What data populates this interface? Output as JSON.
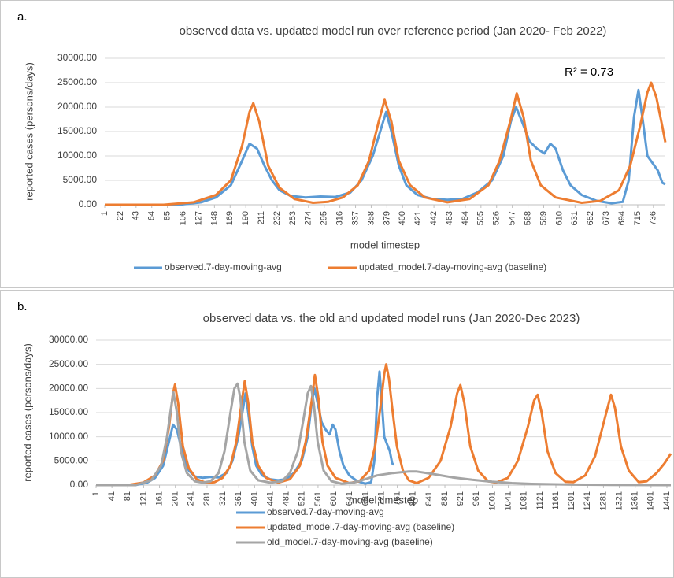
{
  "chart_data": [
    {
      "type": "line",
      "label": "a.",
      "title": "observed data vs. updated model run over reference period (Jan 2020- Feb 2022)",
      "x_label": "model timestep",
      "y_label": "reported cases (persons/days)",
      "annotation": "R² = 0.73",
      "xlim": [
        1,
        752
      ],
      "ylim": [
        0,
        30000
      ],
      "xticks": [
        1,
        22,
        43,
        64,
        85,
        106,
        127,
        148,
        169,
        190,
        211,
        232,
        253,
        274,
        295,
        316,
        337,
        358,
        379,
        400,
        421,
        442,
        463,
        484,
        505,
        526,
        547,
        568,
        589,
        610,
        631,
        652,
        673,
        694,
        715,
        736
      ],
      "yticks": [
        {
          "value": 0,
          "label": "0.00"
        },
        {
          "value": 5000,
          "label": "5000.00"
        },
        {
          "value": 10000,
          "label": "10000.00"
        },
        {
          "value": 15000,
          "label": "15000.00"
        },
        {
          "value": 20000,
          "label": "20000.00"
        },
        {
          "value": 25000,
          "label": "25000.00"
        },
        {
          "value": 30000,
          "label": "30000.00"
        }
      ],
      "grid": true,
      "legend": "bottom",
      "series": [
        {
          "name": "observed.7-day-moving-avg",
          "color": "#5b9bd5",
          "x": [
            1,
            100,
            130,
            150,
            170,
            185,
            195,
            205,
            215,
            225,
            235,
            250,
            270,
            290,
            310,
            330,
            345,
            360,
            372,
            378,
            385,
            395,
            405,
            420,
            440,
            460,
            480,
            500,
            520,
            535,
            545,
            552,
            560,
            570,
            580,
            590,
            598,
            605,
            615,
            625,
            640,
            660,
            680,
            695,
            703,
            710,
            716,
            722,
            728,
            735,
            742,
            748,
            752
          ],
          "values": [
            0,
            0,
            500,
            1500,
            4000,
            9000,
            12500,
            11500,
            8000,
            5000,
            3000,
            1800,
            1500,
            1700,
            1600,
            2500,
            5000,
            10000,
            16000,
            19000,
            15000,
            8000,
            4000,
            2000,
            1200,
            1000,
            1200,
            2500,
            5000,
            10000,
            17000,
            20000,
            17000,
            13000,
            11500,
            10500,
            12500,
            11500,
            7000,
            4000,
            2000,
            800,
            300,
            600,
            5000,
            18000,
            23500,
            17000,
            10000,
            8500,
            7000,
            4500,
            4200
          ]
        },
        {
          "name": "updated_model.7-day-moving-avg (baseline)",
          "color": "#ed7d31",
          "x": [
            1,
            80,
            120,
            150,
            170,
            185,
            195,
            200,
            208,
            220,
            235,
            255,
            280,
            300,
            320,
            340,
            355,
            368,
            376,
            385,
            395,
            410,
            430,
            460,
            490,
            515,
            530,
            545,
            553,
            562,
            572,
            585,
            605,
            640,
            665,
            690,
            705,
            718,
            728,
            733,
            740,
            748,
            752
          ],
          "values": [
            0,
            0,
            500,
            2000,
            5000,
            12000,
            19000,
            20800,
            17000,
            8000,
            3500,
            1200,
            400,
            600,
            1500,
            4000,
            9000,
            17000,
            21500,
            17000,
            9000,
            4000,
            1500,
            500,
            1200,
            4000,
            9000,
            17500,
            22800,
            18000,
            9000,
            4000,
            1500,
            400,
            800,
            3000,
            8000,
            16000,
            23000,
            25000,
            22000,
            16000,
            12800
          ]
        }
      ]
    },
    {
      "type": "line",
      "label": "b.",
      "title": "observed data vs. the old and updated model runs (Jan 2020-Dec 2023)",
      "x_label": "model timestep",
      "y_label": "reported cases (persons/days)",
      "xlim": [
        1,
        1451
      ],
      "ylim": [
        0,
        30000
      ],
      "xticks": [
        1,
        41,
        81,
        121,
        161,
        201,
        241,
        281,
        321,
        361,
        401,
        441,
        481,
        521,
        561,
        601,
        641,
        681,
        721,
        761,
        801,
        841,
        881,
        921,
        961,
        1001,
        1041,
        1081,
        1121,
        1161,
        1201,
        1241,
        1281,
        1321,
        1361,
        1401,
        1441
      ],
      "yticks": [
        {
          "value": 0,
          "label": "0.00"
        },
        {
          "value": 5000,
          "label": "5000.00"
        },
        {
          "value": 10000,
          "label": "10000.00"
        },
        {
          "value": 15000,
          "label": "15000.00"
        },
        {
          "value": 20000,
          "label": "20000.00"
        },
        {
          "value": 25000,
          "label": "25000.00"
        },
        {
          "value": 30000,
          "label": "30000.00"
        }
      ],
      "grid": true,
      "legend": "bottom",
      "series": [
        {
          "name": "observed.7-day-moving-avg",
          "color": "#5b9bd5",
          "x": [
            1,
            100,
            130,
            150,
            170,
            185,
            195,
            205,
            215,
            225,
            235,
            250,
            270,
            290,
            310,
            330,
            345,
            360,
            372,
            378,
            385,
            395,
            405,
            420,
            440,
            460,
            480,
            500,
            520,
            535,
            545,
            552,
            560,
            570,
            580,
            590,
            598,
            605,
            615,
            625,
            640,
            660,
            680,
            695,
            703,
            710,
            716,
            722,
            728,
            735,
            742,
            748,
            752
          ],
          "values": [
            0,
            0,
            500,
            1500,
            4000,
            9000,
            12500,
            11500,
            8000,
            5000,
            3000,
            1800,
            1500,
            1700,
            1600,
            2500,
            5000,
            10000,
            16000,
            19000,
            15000,
            8000,
            4000,
            2000,
            1200,
            1000,
            1200,
            2500,
            5000,
            10000,
            17000,
            20000,
            17000,
            13000,
            11500,
            10500,
            12500,
            11500,
            7000,
            4000,
            2000,
            800,
            300,
            600,
            5000,
            18000,
            23500,
            17000,
            10000,
            8500,
            7000,
            4500,
            4200
          ]
        },
        {
          "name": "updated_model.7-day-moving-avg (baseline)",
          "color": "#ed7d31",
          "x": [
            1,
            80,
            120,
            150,
            170,
            185,
            195,
            200,
            208,
            220,
            235,
            255,
            280,
            300,
            320,
            340,
            355,
            368,
            376,
            385,
            395,
            410,
            430,
            460,
            490,
            515,
            530,
            545,
            553,
            562,
            572,
            585,
            605,
            640,
            665,
            690,
            705,
            718,
            728,
            733,
            740,
            748,
            760,
            775,
            790,
            810,
            840,
            870,
            895,
            912,
            920,
            930,
            945,
            965,
            990,
            1010,
            1040,
            1065,
            1090,
            1106,
            1115,
            1125,
            1140,
            1160,
            1185,
            1205,
            1235,
            1260,
            1285,
            1300,
            1310,
            1325,
            1345,
            1370,
            1390,
            1415,
            1435,
            1451
          ],
          "values": [
            0,
            0,
            500,
            2000,
            5000,
            12000,
            19000,
            20800,
            17000,
            8000,
            3500,
            1200,
            400,
            600,
            1500,
            4000,
            9000,
            17000,
            21500,
            17000,
            9000,
            4000,
            1500,
            500,
            1200,
            4000,
            9000,
            17500,
            22800,
            18000,
            9000,
            4000,
            1500,
            400,
            800,
            3000,
            8000,
            16000,
            23000,
            25000,
            22000,
            16000,
            8000,
            3000,
            1000,
            400,
            1500,
            5000,
            12000,
            19000,
            20700,
            17000,
            8000,
            3000,
            800,
            500,
            1500,
            5000,
            12000,
            17500,
            18700,
            15000,
            7000,
            2500,
            700,
            600,
            2000,
            6000,
            14000,
            18700,
            16000,
            8000,
            3000,
            600,
            800,
            2500,
            4500,
            6500
          ]
        },
        {
          "name": "old_model.7-day-moving-avg (baseline)",
          "color": "#a5a5a5",
          "x": [
            1,
            100,
            140,
            165,
            180,
            190,
            196,
            205,
            215,
            230,
            250,
            270,
            290,
            310,
            325,
            340,
            350,
            358,
            365,
            375,
            390,
            410,
            440,
            470,
            490,
            510,
            525,
            535,
            543,
            550,
            560,
            575,
            595,
            620,
            650,
            680,
            710,
            750,
            790,
            810,
            850,
            900,
            950,
            1000,
            1050,
            1100,
            1200,
            1300,
            1451
          ],
          "values": [
            0,
            0,
            1000,
            4000,
            10000,
            16000,
            19200,
            15000,
            7000,
            2500,
            800,
            500,
            800,
            2500,
            7000,
            15000,
            20000,
            21000,
            18000,
            9000,
            3000,
            1000,
            500,
            800,
            2500,
            7000,
            14000,
            19000,
            20500,
            17000,
            9000,
            3000,
            800,
            300,
            500,
            1200,
            2000,
            2500,
            2800,
            2800,
            2300,
            1600,
            1100,
            700,
            400,
            250,
            100,
            50,
            0
          ]
        }
      ]
    }
  ]
}
